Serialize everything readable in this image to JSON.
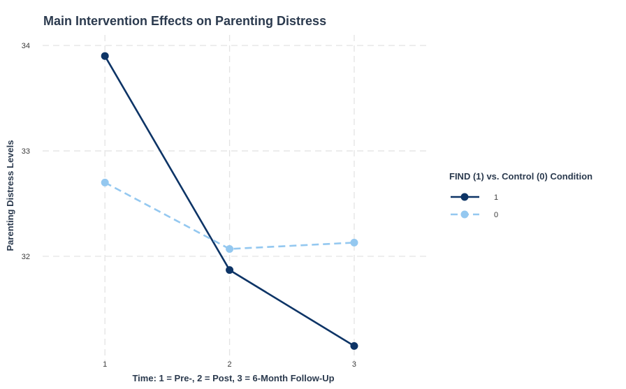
{
  "chart_data": {
    "type": "line",
    "title": "Main Intervention Effects on Parenting Distress",
    "xlabel": "Time: 1 = Pre-, 2 = Post, 3 = 6-Month Follow-Up",
    "ylabel": "Parenting Distress Levels",
    "x": [
      1,
      2,
      3
    ],
    "xlim": [
      0.5,
      3.6
    ],
    "ylim": [
      31.0,
      34.1
    ],
    "xticks": [
      "1",
      "2",
      "3"
    ],
    "yticks": [
      "32",
      "33",
      "34"
    ],
    "grid": true,
    "legend": {
      "title": "FIND (1) vs. Control (0) Condition",
      "position": "right"
    },
    "series": [
      {
        "name": "1",
        "values": [
          33.9,
          31.87,
          31.15
        ],
        "color": "#0d3466",
        "dash": "solid"
      },
      {
        "name": "0",
        "values": [
          32.7,
          32.07,
          32.13
        ],
        "color": "#94c8f0",
        "dash": "dashed"
      }
    ]
  }
}
